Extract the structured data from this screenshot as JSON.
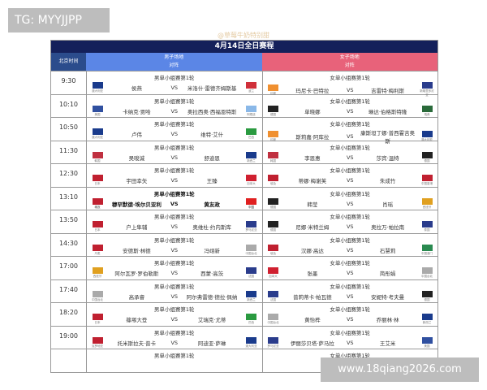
{
  "overlay_label": "TG: MYYJJPP",
  "watermark": "@草莓牛奶特别甜",
  "site_label": "www.18qiang2026.com",
  "title": "4月14日全日赛程",
  "headers": {
    "time": "北京时间",
    "men": "男子场地",
    "men_sub": "对阵",
    "women": "女子场地",
    "women_sub": "对阵"
  },
  "vs": "VS",
  "rows": [
    {
      "time": "9:30",
      "m": {
        "round": "男单小组赛第1轮",
        "p1": "侯燕",
        "p2": "米洛什·雷德齐姆斯基",
        "f1": "澳大利亚",
        "f2": "波兰",
        "c1": "#1a3b8c",
        "c2": "#d0303a"
      },
      "w": {
        "round": "女单小组赛第1轮",
        "p1": "玛尼卡·巴特拉",
        "p2": "吉雷特·梅利斯",
        "f1": "印度",
        "f2": "新喀里多尼亚",
        "c1": "#f09030",
        "c2": "#2a3c8c"
      }
    },
    {
      "time": "10:10",
      "m": {
        "round": "男单小组赛第1轮",
        "p1": "卡纳克·贾哈",
        "p2": "奥拉西奥·西福恩特斯",
        "f1": "美国",
        "f2": "阿根廷",
        "c1": "#3050a0",
        "c2": "#8ab8e8"
      },
      "w": {
        "round": "女单小组赛第1轮",
        "p1": "单晓娜",
        "p2": "琳达·伯格斯特隆",
        "f1": "德国",
        "f2": "瑞典",
        "c1": "#222",
        "c2": "#2a6a3a"
      }
    },
    {
      "time": "10:50",
      "m": {
        "round": "男单小组赛第1轮",
        "p1": "卢伟",
        "p2": "维特·艾什",
        "f1": "澳大利亚",
        "f2": "巴西",
        "c1": "#1a3b8c",
        "c2": "#2a9a40"
      },
      "w": {
        "round": "女单小组赛第1轮",
        "p1": "斯莉嘉·阿库拉",
        "p2": "康斯坦丁娜·普西霍吉奥斯",
        "f1": "印度",
        "f2": "澳大利亚",
        "c1": "#f09030",
        "c2": "#1a3b8c"
      }
    },
    {
      "time": "11:30",
      "m": {
        "round": "男单小组赛第1轮",
        "p1": "吴晙诚",
        "p2": "舒迪恩",
        "f1": "韩国",
        "f2": "新西兰",
        "c1": "#c03040",
        "c2": "#1a3b8c"
      },
      "w": {
        "round": "女单小组赛第1轮",
        "p1": "李恩惠",
        "p2": "莎宾·温特",
        "f1": "韩国",
        "f2": "德国",
        "c1": "#c03040",
        "c2": "#222"
      }
    },
    {
      "time": "12:30",
      "m": {
        "round": "男单小组赛第1轮",
        "p1": "宇田幸矢",
        "p2": "王臻",
        "f1": "日本",
        "f2": "加拿大",
        "c1": "#c02030",
        "c2": "#d02030"
      },
      "w": {
        "round": "女单小组赛第1轮",
        "p1": "蒂娜·梅谢芙",
        "p2": "朱成竹",
        "f1": "埃及",
        "f2": "中国香港",
        "c1": "#c02030",
        "c2": "#c02030"
      }
    },
    {
      "time": "13:10",
      "bold": true,
      "m": {
        "round": "男单小组赛第1轮",
        "p1": "穆罕默德·埃尔贝亚利",
        "p2": "黄友政",
        "f1": "埃及",
        "f2": "中国",
        "c1": "#c02030",
        "c2": "#e02020"
      },
      "w": {
        "round": "女单小组赛第1轮",
        "p1": "韩莹",
        "p2": "肖瑶",
        "f1": "德国",
        "f2": "西班牙",
        "c1": "#222",
        "c2": "#e0a020"
      }
    },
    {
      "time": "13:50",
      "m": {
        "round": "男单小组赛第1轮",
        "p1": "户上隼辅",
        "p2": "奥维杜·约内斯库",
        "f1": "日本",
        "f2": "罗马尼亚",
        "c1": "#c02030",
        "c2": "#2a3c8c"
      },
      "w": {
        "round": "女单小组赛第1轮",
        "p1": "尼娜·米特兰姆",
        "p2": "奥拉万·帕拉南",
        "f1": "德国",
        "f2": "泰国",
        "c1": "#222",
        "c2": "#2a3c8c"
      }
    },
    {
      "time": "14:30",
      "m": {
        "round": "男单小组赛第1轮",
        "p1": "安德斯·林德",
        "p2": "冯翊新",
        "f1": "丹麦",
        "f2": "中国台北",
        "c1": "#c02030",
        "c2": "#aaa"
      },
      "w": {
        "round": "女单小组赛第1轮",
        "p1": "汉娜·高达",
        "p2": "石慧莉",
        "f1": "埃及",
        "f2": "中国澳门",
        "c1": "#c02030",
        "c2": "#2a8a50"
      }
    },
    {
      "time": "17:00",
      "m": {
        "round": "男单小组赛第1轮",
        "p1": "阿尔瓦罗·罗伯勒斯",
        "p2": "西蒙·高茨",
        "f1": "西班牙",
        "f2": "法国",
        "c1": "#e0a020",
        "c2": "#2a3c8c"
      },
      "w": {
        "round": "女单小组赛第1轮",
        "p1": "张墨",
        "p2": "简彤娟",
        "f1": "加拿大",
        "f2": "中国台北",
        "c1": "#d02030",
        "c2": "#aaa"
      }
    },
    {
      "time": "17:40",
      "m": {
        "round": "男单小组赛第1轮",
        "p1": "高承睿",
        "p2": "阿尔弗雷德·德拉·佩纳",
        "f1": "中国台北",
        "f2": "新西兰",
        "c1": "#aaa",
        "c2": "#1a3b8c"
      },
      "w": {
        "round": "女单小组赛第1轮",
        "p1": "普莉蒂卡·帕瓦德",
        "p2": "安妮特·考夫曼",
        "f1": "法国",
        "f2": "德国",
        "c1": "#2a3c8c",
        "c2": "#222"
      }
    },
    {
      "time": "18:20",
      "m": {
        "round": "男单小组赛第1轮",
        "p1": "篠塚大登",
        "p2": "艾瑞克·尤蒂",
        "f1": "日本",
        "f2": "巴西",
        "c1": "#c02030",
        "c2": "#2a9a40"
      },
      "w": {
        "round": "女单小组赛第1轮",
        "p1": "黄怡桦",
        "p2": "乔丽林·林",
        "f1": "中国台北",
        "f2": "新西兰",
        "c1": "#aaa",
        "c2": "#1a3b8c"
      }
    },
    {
      "time": "19:00",
      "m": {
        "round": "男单小组赛第1轮",
        "p1": "托米斯拉夫·普卡",
        "p2": "阿迪亚·萨琳",
        "f1": "克罗地亚",
        "f2": "澳大利亚",
        "c1": "#c02030",
        "c2": "#1a3b8c"
      },
      "w": {
        "round": "女单小组赛第1轮",
        "p1": "伊丽莎贝塔·萨马拉",
        "p2": "王艾米",
        "f1": "罗马尼亚",
        "f2": "美国",
        "c1": "#2a3c8c",
        "c2": "#3050a0"
      }
    },
    {
      "time": "",
      "m": {
        "round": "男单小组赛第1轮"
      },
      "w": {
        "round": "女单小组赛第1轮"
      }
    }
  ]
}
